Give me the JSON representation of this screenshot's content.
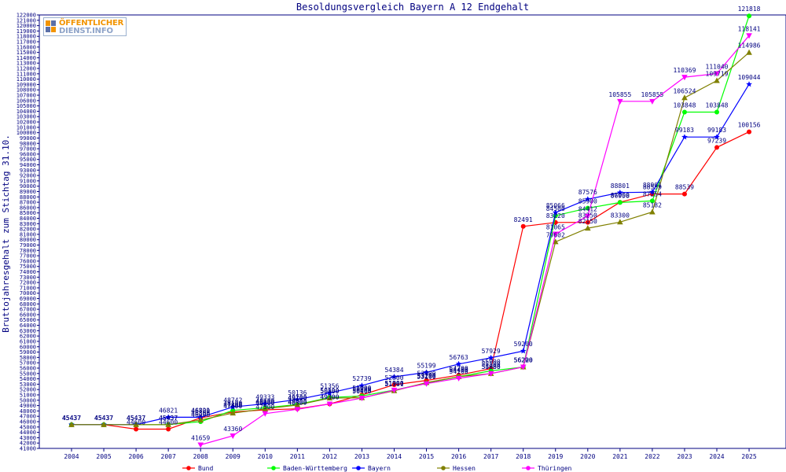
{
  "logo": {
    "line1": "ÖFFENTLICHER",
    "line2": "DIENST.INFO"
  },
  "chart_data": {
    "type": "line",
    "title": "Besoldungsvergleich Bayern A 12 Endgehalt",
    "ylabel": "Bruttojahresgehalt zum Stichtag 31.10.",
    "xlabel": "",
    "ylim": [
      41000,
      122000
    ],
    "ytick_step": 1000,
    "categories": [
      "2004",
      "2005",
      "2006",
      "2007",
      "2008",
      "2009",
      "2010",
      "2011",
      "2012",
      "2013",
      "2014",
      "2015",
      "2016",
      "2017",
      "2018",
      "2019",
      "2020",
      "2021",
      "2022",
      "2023",
      "2024",
      "2025"
    ],
    "legend_position": "bottom",
    "series": [
      {
        "name": "Bund",
        "color": "#ff0000",
        "values": [
          45437,
          45437,
          44600,
          44600,
          46700,
          47800,
          48200,
          48400,
          49300,
          51000,
          52900,
          53700,
          54700,
          55900,
          82491,
          83220,
          83250,
          87000,
          88539,
          88539,
          97239,
          100156
        ],
        "labels": [
          "45437",
          "45437",
          "44600",
          "44600",
          "46700",
          "47800",
          "48200",
          "48400",
          "49300",
          "51000",
          "52900",
          "53700",
          "54700",
          "55900",
          "82491",
          "83220",
          "83250",
          "87000",
          "88539",
          "88539",
          "97239",
          "100156"
        ]
      },
      {
        "name": "Baden-Württemberg",
        "color": "#00ff00",
        "values": [
          45437,
          45437,
          45437,
          45437,
          46000,
          48100,
          48600,
          49200,
          50500,
          50800,
          51900,
          53200,
          54400,
          55500,
          56200,
          84500,
          85900,
          86958,
          87254,
          103848,
          103848,
          121818
        ],
        "labels": [
          "45437",
          "45437",
          "45437",
          "45437",
          "46000",
          "48100",
          "48600",
          "49200",
          "50500",
          "50800",
          "51900",
          "53200",
          "54400",
          "55500",
          "56200",
          "84500",
          "85900",
          "86958",
          "87254",
          "103848",
          "103848",
          "121818"
        ]
      },
      {
        "name": "Bayern",
        "color": "#0000ff",
        "values": [
          45437,
          45437,
          45437,
          46821,
          46821,
          48742,
          49333,
          50136,
          51356,
          52739,
          54384,
          55199,
          56763,
          57929,
          59200,
          85066,
          87576,
          88801,
          88901,
          99183,
          99183,
          109044
        ],
        "labels": [
          "45437",
          "45437",
          "45437",
          "46821",
          "46821",
          "48742",
          "49333",
          "50136",
          "51356",
          "52739",
          "54384",
          "55199",
          "56763",
          "57929",
          "59200",
          "85066",
          "87576",
          "88801",
          "88901",
          "99183",
          "99183",
          "109044"
        ]
      },
      {
        "name": "Hessen",
        "color": "#808000",
        "values": [
          45437,
          45437,
          45437,
          45437,
          46300,
          47600,
          48400,
          49100,
          50400,
          50463,
          51761,
          53299,
          54400,
          54986,
          56220,
          79602,
          82150,
          83300,
          85182,
          106524,
          109719,
          114986
        ],
        "labels": [
          "45437",
          "45437",
          "45437",
          "45437",
          "46300",
          "47600",
          "48400",
          "49100",
          "50400",
          "50463",
          "51761",
          "53299",
          "54400",
          "54986",
          "56220",
          "79602",
          "82150",
          "83300",
          "85182",
          "106524",
          "109719",
          "114986"
        ]
      },
      {
        "name": "Thüringen",
        "color": "#ff00ff",
        "values": [
          null,
          null,
          null,
          null,
          41659,
          43360,
          47500,
          48300,
          49300,
          50400,
          51900,
          53100,
          54100,
          55000,
          56220,
          81065,
          84412,
          105855,
          105855,
          110369,
          111040,
          118141
        ],
        "labels": [
          null,
          null,
          null,
          null,
          "41659",
          "43360",
          "47500",
          "48300",
          "49300",
          "50400",
          "51900",
          "53100",
          "54100",
          "55000",
          "56220",
          "81065",
          "84412",
          "105855",
          "105855",
          "110369",
          "111040",
          "118141"
        ]
      }
    ]
  }
}
